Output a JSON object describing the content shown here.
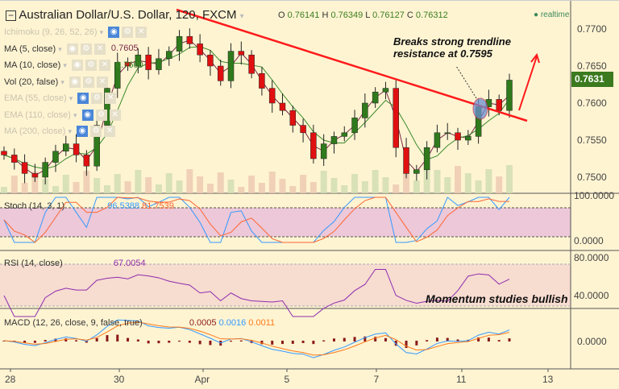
{
  "header": {
    "symbol": "Australian Dollar/U.S. Dollar, 120, FXCM",
    "open_label": "O",
    "open": "0.76141",
    "high_label": "H",
    "high": "0.76349",
    "low_label": "L",
    "low": "0.76127",
    "close_label": "C",
    "close": "0.76312",
    "status": "realtime"
  },
  "indicators": [
    {
      "label": "Ichimoku (9, 26, 52, 26)",
      "value": "",
      "hidden": true
    },
    {
      "label": "MA (5, close)",
      "value": "0.7605",
      "hidden": false
    },
    {
      "label": "MA (10, close)",
      "value": "0.7600",
      "hidden": false
    },
    {
      "label": "Vol (20, false)",
      "value": "",
      "hidden": false
    },
    {
      "label": "EMA (55, close)",
      "value": "",
      "hidden": true
    },
    {
      "label": "EMA (110, close)",
      "value": "",
      "hidden": true
    },
    {
      "label": "MA (200, close)",
      "value": "",
      "hidden": true
    }
  ],
  "stoch": {
    "label": "Stoch (14, 3, 1)",
    "k": "96.5388",
    "d": "81.7539"
  },
  "rsi": {
    "label": "RSI (14, close)",
    "value": "67.0054"
  },
  "macd": {
    "label": "MACD (12, 26, close, 9, false, true)",
    "hist": "0.0005",
    "macd": "0.0016",
    "signal": "0.0011"
  },
  "annotations": {
    "trendline": "Breaks strong trendline\nresistance at 0.7595",
    "momentum": "Momentum studies bullish"
  },
  "colors": {
    "up": "#2f7a1c",
    "down": "#e01010",
    "trendline": "#ff1a1a",
    "ma5": "#7a2a4a",
    "ma10": "#3a8a2a",
    "stochK": "#3399ff",
    "stochD": "#ff6633",
    "rsi": "#8e2cae",
    "background": "#fff4d2"
  },
  "chart_data": {
    "type": "candlestick",
    "price_axis": {
      "ticks": [
        "0.7700",
        "0.7650",
        "0.7600",
        "0.7550",
        "0.7500"
      ],
      "range": [
        0.7485,
        0.7725
      ]
    },
    "last_price": "0.7631",
    "date_ticks": [
      "28",
      "30",
      "Apr",
      "5",
      "7",
      "11",
      "13"
    ],
    "closes": [
      0.753,
      0.752,
      0.7505,
      0.75,
      0.752,
      0.7535,
      0.7545,
      0.753,
      0.7515,
      0.757,
      0.762,
      0.7655,
      0.765,
      0.7665,
      0.7645,
      0.766,
      0.767,
      0.769,
      0.768,
      0.7665,
      0.765,
      0.763,
      0.767,
      0.7665,
      0.764,
      0.762,
      0.76,
      0.759,
      0.757,
      0.756,
      0.7525,
      0.7545,
      0.7555,
      0.756,
      0.758,
      0.76,
      0.7615,
      0.762,
      0.754,
      0.7505,
      0.751,
      0.754,
      0.756,
      0.756,
      0.755,
      0.7555,
      0.7595,
      0.7605,
      0.759,
      0.7631
    ],
    "stoch_axis": [
      "100.0000",
      "0.0000"
    ],
    "rsi_axis": [
      "80.0000",
      "40.0000"
    ],
    "macd_axis": [
      "0.0000"
    ],
    "trendline_value": 0.7595
  }
}
